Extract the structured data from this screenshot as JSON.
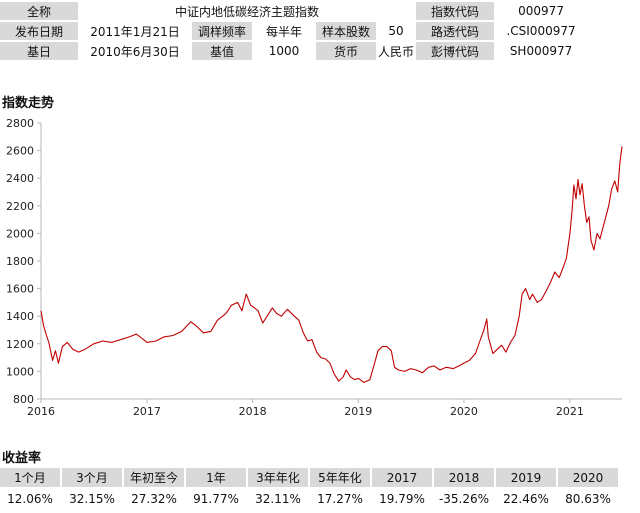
{
  "info": {
    "row1": {
      "l1": "全称",
      "v1": "中证内地低碳经济主题指数",
      "l2": "指数代码",
      "v2": "000977"
    },
    "row2": {
      "l1": "发布日期",
      "v1": "2011年1月21日",
      "l2": "调样频率",
      "v2": "每半年",
      "l3": "样本股数",
      "v3": "50",
      "l4": "路透代码",
      "v4": ".CSI000977"
    },
    "row3": {
      "l1": "基日",
      "v1": "2010年6月30日",
      "l2": "基值",
      "v2": "1000",
      "l3": "货币",
      "v3": "人民币",
      "l4": "彭博代码",
      "v4": "SH000977"
    }
  },
  "trend_title": "指数走势",
  "returns_title": "收益率",
  "colors": {
    "line": "#c00000",
    "label_bg": "#d9d9d9",
    "axis": "#b7b7b7"
  },
  "chart_data": {
    "type": "line",
    "title": "",
    "xlabel": "",
    "ylabel": "",
    "ylim": [
      800,
      2800
    ],
    "yticks": [
      800,
      1000,
      1200,
      1400,
      1600,
      1800,
      2000,
      2200,
      2400,
      2600,
      2800
    ],
    "xlim": [
      "2016-01-01",
      "2021-06-30"
    ],
    "xticks": [
      {
        "date": "2016-01-01",
        "label": "2016"
      },
      {
        "date": "2017-01-01",
        "label": "2017"
      },
      {
        "date": "2018-01-01",
        "label": "2018"
      },
      {
        "date": "2019-01-01",
        "label": "2019"
      },
      {
        "date": "2020-01-01",
        "label": "2020"
      },
      {
        "date": "2021-01-01",
        "label": "2021"
      }
    ],
    "grid": false,
    "legend": "none",
    "series": [
      {
        "values": [
          [
            "2016-01-01",
            1440
          ],
          [
            "2016-01-10",
            1330
          ],
          [
            "2016-01-20",
            1260
          ],
          [
            "2016-01-28",
            1210
          ],
          [
            "2016-02-10",
            1080
          ],
          [
            "2016-02-20",
            1150
          ],
          [
            "2016-03-01",
            1060
          ],
          [
            "2016-03-15",
            1180
          ],
          [
            "2016-04-01",
            1210
          ],
          [
            "2016-04-20",
            1160
          ],
          [
            "2016-05-10",
            1140
          ],
          [
            "2016-06-01",
            1160
          ],
          [
            "2016-07-01",
            1200
          ],
          [
            "2016-08-01",
            1220
          ],
          [
            "2016-09-01",
            1210
          ],
          [
            "2016-10-01",
            1230
          ],
          [
            "2016-11-01",
            1250
          ],
          [
            "2016-11-25",
            1270
          ],
          [
            "2016-12-15",
            1240
          ],
          [
            "2017-01-01",
            1210
          ],
          [
            "2017-02-01",
            1220
          ],
          [
            "2017-03-01",
            1250
          ],
          [
            "2017-04-01",
            1260
          ],
          [
            "2017-05-01",
            1290
          ],
          [
            "2017-06-01",
            1360
          ],
          [
            "2017-06-20",
            1330
          ],
          [
            "2017-07-15",
            1280
          ],
          [
            "2017-08-10",
            1290
          ],
          [
            "2017-09-01",
            1370
          ],
          [
            "2017-10-01",
            1420
          ],
          [
            "2017-10-20",
            1480
          ],
          [
            "2017-11-10",
            1500
          ],
          [
            "2017-11-25",
            1440
          ],
          [
            "2017-12-10",
            1560
          ],
          [
            "2017-12-25",
            1480
          ],
          [
            "2018-01-01",
            1470
          ],
          [
            "2018-01-20",
            1440
          ],
          [
            "2018-02-05",
            1350
          ],
          [
            "2018-02-20",
            1400
          ],
          [
            "2018-03-10",
            1460
          ],
          [
            "2018-03-25",
            1420
          ],
          [
            "2018-04-10",
            1400
          ],
          [
            "2018-05-01",
            1450
          ],
          [
            "2018-05-20",
            1410
          ],
          [
            "2018-06-10",
            1370
          ],
          [
            "2018-06-25",
            1280
          ],
          [
            "2018-07-10",
            1220
          ],
          [
            "2018-07-25",
            1230
          ],
          [
            "2018-08-10",
            1140
          ],
          [
            "2018-08-25",
            1100
          ],
          [
            "2018-09-10",
            1090
          ],
          [
            "2018-09-25",
            1060
          ],
          [
            "2018-10-10",
            980
          ],
          [
            "2018-10-25",
            930
          ],
          [
            "2018-11-10",
            960
          ],
          [
            "2018-11-20",
            1010
          ],
          [
            "2018-12-05",
            960
          ],
          [
            "2018-12-20",
            940
          ],
          [
            "2019-01-01",
            950
          ],
          [
            "2019-01-20",
            920
          ],
          [
            "2019-02-10",
            940
          ],
          [
            "2019-02-25",
            1050
          ],
          [
            "2019-03-10",
            1150
          ],
          [
            "2019-03-25",
            1180
          ],
          [
            "2019-04-10",
            1180
          ],
          [
            "2019-04-25",
            1150
          ],
          [
            "2019-05-06",
            1030
          ],
          [
            "2019-05-20",
            1010
          ],
          [
            "2019-06-10",
            1000
          ],
          [
            "2019-07-01",
            1020
          ],
          [
            "2019-07-20",
            1010
          ],
          [
            "2019-08-10",
            990
          ],
          [
            "2019-09-01",
            1030
          ],
          [
            "2019-09-20",
            1040
          ],
          [
            "2019-10-10",
            1010
          ],
          [
            "2019-11-01",
            1030
          ],
          [
            "2019-11-25",
            1020
          ],
          [
            "2019-12-15",
            1040
          ],
          [
            "2020-01-01",
            1060
          ],
          [
            "2020-01-20",
            1080
          ],
          [
            "2020-02-10",
            1130
          ],
          [
            "2020-02-25",
            1220
          ],
          [
            "2020-03-10",
            1300
          ],
          [
            "2020-03-20",
            1380
          ],
          [
            "2020-03-25",
            1250
          ],
          [
            "2020-04-10",
            1130
          ],
          [
            "2020-04-25",
            1160
          ],
          [
            "2020-05-10",
            1190
          ],
          [
            "2020-05-25",
            1140
          ],
          [
            "2020-06-10",
            1210
          ],
          [
            "2020-06-25",
            1260
          ],
          [
            "2020-07-10",
            1400
          ],
          [
            "2020-07-20",
            1560
          ],
          [
            "2020-08-01",
            1600
          ],
          [
            "2020-08-15",
            1520
          ],
          [
            "2020-08-25",
            1560
          ],
          [
            "2020-09-10",
            1500
          ],
          [
            "2020-09-25",
            1520
          ],
          [
            "2020-10-10",
            1580
          ],
          [
            "2020-10-25",
            1640
          ],
          [
            "2020-11-10",
            1720
          ],
          [
            "2020-11-25",
            1680
          ],
          [
            "2020-12-10",
            1760
          ],
          [
            "2020-12-20",
            1820
          ],
          [
            "2021-01-01",
            2000
          ],
          [
            "2021-01-08",
            2150
          ],
          [
            "2021-01-15",
            2350
          ],
          [
            "2021-01-22",
            2250
          ],
          [
            "2021-01-29",
            2390
          ],
          [
            "2021-02-05",
            2280
          ],
          [
            "2021-02-12",
            2360
          ],
          [
            "2021-02-20",
            2200
          ],
          [
            "2021-02-28",
            2080
          ],
          [
            "2021-03-08",
            2120
          ],
          [
            "2021-03-15",
            1950
          ],
          [
            "2021-03-25",
            1880
          ],
          [
            "2021-04-05",
            2000
          ],
          [
            "2021-04-15",
            1960
          ],
          [
            "2021-04-25",
            2040
          ],
          [
            "2021-05-05",
            2120
          ],
          [
            "2021-05-15",
            2200
          ],
          [
            "2021-05-25",
            2320
          ],
          [
            "2021-06-05",
            2380
          ],
          [
            "2021-06-15",
            2300
          ],
          [
            "2021-06-22",
            2500
          ],
          [
            "2021-06-30",
            2630
          ]
        ]
      }
    ]
  },
  "returns": {
    "headers": [
      "1个月",
      "3个月",
      "年初至今",
      "1年",
      "3年年化",
      "5年年化",
      "2017",
      "2018",
      "2019",
      "2020"
    ],
    "values": [
      "12.06%",
      "32.15%",
      "27.32%",
      "91.77%",
      "32.11%",
      "17.27%",
      "19.79%",
      "-35.26%",
      "22.46%",
      "80.63%"
    ]
  }
}
